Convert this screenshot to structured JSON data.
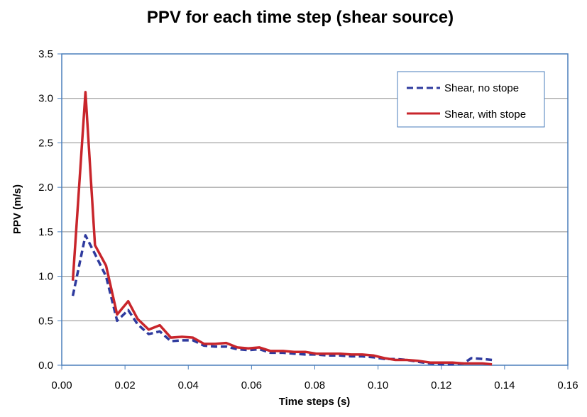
{
  "chart_data": {
    "type": "line",
    "title": "PPV for each time step (shear source)",
    "xlabel": "Time steps (s)",
    "ylabel": "PPV (m/s)",
    "xlim": [
      0,
      0.16
    ],
    "ylim": [
      0,
      3.5
    ],
    "x_ticks": [
      0,
      0.02,
      0.04,
      0.06,
      0.08,
      0.1,
      0.12,
      0.14,
      0.16
    ],
    "x_tick_labels": [
      "0.00",
      "0.02",
      "0.04",
      "0.06",
      "0.08",
      "0.10",
      "0.12",
      "0.14",
      "0.16"
    ],
    "y_ticks": [
      0,
      0.5,
      1.0,
      1.5,
      2.0,
      2.5,
      3.0,
      3.5
    ],
    "y_tick_labels": [
      "0.0",
      "0.5",
      "1.0",
      "1.5",
      "2.0",
      "2.5",
      "3.0",
      "3.5"
    ],
    "grid": "horizontal",
    "legend_position": "top-right",
    "series": [
      {
        "name": "Shear, no stope",
        "color": "#2e3a9e",
        "style": "dashed",
        "points": [
          [
            0.0035,
            0.78
          ],
          [
            0.0075,
            1.46
          ],
          [
            0.0105,
            1.25
          ],
          [
            0.014,
            1.0
          ],
          [
            0.0175,
            0.5
          ],
          [
            0.021,
            0.62
          ],
          [
            0.024,
            0.46
          ],
          [
            0.0275,
            0.35
          ],
          [
            0.031,
            0.38
          ],
          [
            0.0345,
            0.27
          ],
          [
            0.038,
            0.28
          ],
          [
            0.0415,
            0.28
          ],
          [
            0.045,
            0.22
          ],
          [
            0.0485,
            0.21
          ],
          [
            0.052,
            0.21
          ],
          [
            0.0555,
            0.18
          ],
          [
            0.059,
            0.17
          ],
          [
            0.0625,
            0.18
          ],
          [
            0.066,
            0.14
          ],
          [
            0.07,
            0.14
          ],
          [
            0.0735,
            0.13
          ],
          [
            0.077,
            0.12
          ],
          [
            0.0805,
            0.12
          ],
          [
            0.084,
            0.11
          ],
          [
            0.088,
            0.11
          ],
          [
            0.0915,
            0.1
          ],
          [
            0.095,
            0.1
          ],
          [
            0.0985,
            0.09
          ],
          [
            0.102,
            0.07
          ],
          [
            0.1055,
            0.07
          ],
          [
            0.109,
            0.06
          ],
          [
            0.1125,
            0.04
          ],
          [
            0.1165,
            0.02
          ],
          [
            0.12,
            0.01
          ],
          [
            0.1235,
            0.01
          ],
          [
            0.127,
            0.02
          ],
          [
            0.1295,
            0.08
          ],
          [
            0.133,
            0.07
          ],
          [
            0.136,
            0.06
          ]
        ]
      },
      {
        "name": "Shear, with stope",
        "color": "#c8252b",
        "style": "solid",
        "points": [
          [
            0.0035,
            0.95
          ],
          [
            0.0075,
            3.07
          ],
          [
            0.0105,
            1.35
          ],
          [
            0.014,
            1.12
          ],
          [
            0.0175,
            0.57
          ],
          [
            0.021,
            0.72
          ],
          [
            0.024,
            0.52
          ],
          [
            0.0275,
            0.4
          ],
          [
            0.031,
            0.45
          ],
          [
            0.0345,
            0.31
          ],
          [
            0.038,
            0.32
          ],
          [
            0.0415,
            0.31
          ],
          [
            0.045,
            0.24
          ],
          [
            0.0485,
            0.24
          ],
          [
            0.052,
            0.25
          ],
          [
            0.0555,
            0.2
          ],
          [
            0.059,
            0.19
          ],
          [
            0.0625,
            0.2
          ],
          [
            0.066,
            0.16
          ],
          [
            0.07,
            0.16
          ],
          [
            0.0735,
            0.15
          ],
          [
            0.077,
            0.15
          ],
          [
            0.0805,
            0.13
          ],
          [
            0.084,
            0.13
          ],
          [
            0.088,
            0.13
          ],
          [
            0.0915,
            0.12
          ],
          [
            0.095,
            0.12
          ],
          [
            0.0985,
            0.11
          ],
          [
            0.102,
            0.08
          ],
          [
            0.1055,
            0.06
          ],
          [
            0.109,
            0.06
          ],
          [
            0.1125,
            0.05
          ],
          [
            0.1165,
            0.03
          ],
          [
            0.12,
            0.03
          ],
          [
            0.1235,
            0.03
          ],
          [
            0.127,
            0.02
          ],
          [
            0.1295,
            0.02
          ],
          [
            0.133,
            0.02
          ],
          [
            0.136,
            0.01
          ]
        ]
      }
    ]
  }
}
